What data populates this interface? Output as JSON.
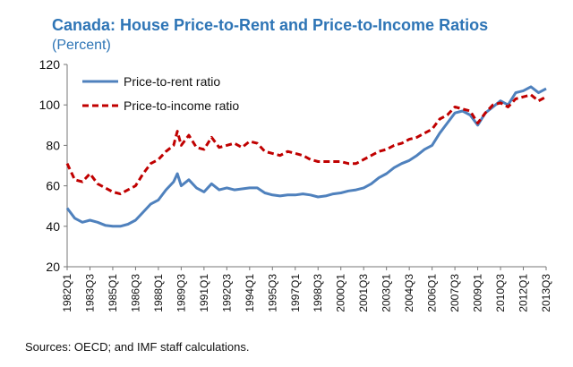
{
  "title": "Canada: House Price-to-Rent and Price-to-Income Ratios",
  "subtitle": "(Percent)",
  "source": "Sources: OECD; and IMF staff calculations.",
  "colors": {
    "title": "#2e75b6",
    "rent": "#4f81bd",
    "income": "#c00000"
  },
  "chart_data": {
    "type": "line",
    "title": "Canada: House Price-to-Rent and Price-to-Income Ratios",
    "subtitle": "(Percent)",
    "ylim": [
      20,
      120
    ],
    "yticks": [
      20,
      40,
      60,
      80,
      100,
      120
    ],
    "grid": false,
    "legend_position": "top-left",
    "x_start": "1982Q1",
    "x_end": "2013Q3",
    "x_tick_labels": [
      "1982Q1",
      "1983Q3",
      "1985Q1",
      "1986Q3",
      "1988Q1",
      "1989Q3",
      "1991Q1",
      "1992Q3",
      "1994Q1",
      "1995Q3",
      "1997Q1",
      "1998Q3",
      "2000Q1",
      "2001Q3",
      "2003Q1",
      "2004Q3",
      "2006Q1",
      "2007Q3",
      "2009Q1",
      "2010Q3",
      "2012Q1",
      "2013Q3"
    ],
    "series": [
      {
        "name": "Price-to-rent ratio",
        "style": "solid",
        "color": "#4f81bd",
        "points": [
          [
            "1982Q1",
            49
          ],
          [
            "1982Q3",
            44
          ],
          [
            "1983Q1",
            42
          ],
          [
            "1983Q3",
            43
          ],
          [
            "1984Q1",
            42
          ],
          [
            "1984Q3",
            40.5
          ],
          [
            "1985Q1",
            40
          ],
          [
            "1985Q3",
            40
          ],
          [
            "1986Q1",
            41
          ],
          [
            "1986Q3",
            43
          ],
          [
            "1987Q1",
            47
          ],
          [
            "1987Q3",
            51
          ],
          [
            "1988Q1",
            53
          ],
          [
            "1988Q3",
            58
          ],
          [
            "1989Q1",
            62
          ],
          [
            "1989Q2",
            66
          ],
          [
            "1989Q3",
            60
          ],
          [
            "1990Q1",
            63
          ],
          [
            "1990Q3",
            59
          ],
          [
            "1991Q1",
            57
          ],
          [
            "1991Q3",
            61
          ],
          [
            "1992Q1",
            58
          ],
          [
            "1992Q3",
            59
          ],
          [
            "1993Q1",
            58
          ],
          [
            "1993Q3",
            58.5
          ],
          [
            "1994Q1",
            59
          ],
          [
            "1994Q3",
            59
          ],
          [
            "1995Q1",
            56.5
          ],
          [
            "1995Q3",
            55.5
          ],
          [
            "1996Q1",
            55
          ],
          [
            "1996Q3",
            55.5
          ],
          [
            "1997Q1",
            55.5
          ],
          [
            "1997Q3",
            56
          ],
          [
            "1998Q1",
            55.5
          ],
          [
            "1998Q3",
            54.5
          ],
          [
            "1999Q1",
            55
          ],
          [
            "1999Q3",
            56
          ],
          [
            "2000Q1",
            56.5
          ],
          [
            "2000Q3",
            57.5
          ],
          [
            "2001Q1",
            58
          ],
          [
            "2001Q3",
            59
          ],
          [
            "2002Q1",
            61
          ],
          [
            "2002Q3",
            64
          ],
          [
            "2003Q1",
            66
          ],
          [
            "2003Q3",
            69
          ],
          [
            "2004Q1",
            71
          ],
          [
            "2004Q3",
            72.5
          ],
          [
            "2005Q1",
            75
          ],
          [
            "2005Q3",
            78
          ],
          [
            "2006Q1",
            80
          ],
          [
            "2006Q3",
            86
          ],
          [
            "2007Q1",
            91
          ],
          [
            "2007Q3",
            96
          ],
          [
            "2008Q1",
            97
          ],
          [
            "2008Q3",
            95
          ],
          [
            "2009Q1",
            90
          ],
          [
            "2009Q3",
            96
          ],
          [
            "2010Q1",
            99
          ],
          [
            "2010Q3",
            102
          ],
          [
            "2011Q1",
            100
          ],
          [
            "2011Q3",
            106
          ],
          [
            "2012Q1",
            107
          ],
          [
            "2012Q3",
            109
          ],
          [
            "2013Q1",
            106
          ],
          [
            "2013Q3",
            108
          ]
        ]
      },
      {
        "name": "Price-to-income ratio",
        "style": "dashed",
        "color": "#c00000",
        "points": [
          [
            "1982Q1",
            71
          ],
          [
            "1982Q3",
            63
          ],
          [
            "1983Q1",
            62
          ],
          [
            "1983Q3",
            66
          ],
          [
            "1984Q1",
            61
          ],
          [
            "1984Q3",
            59
          ],
          [
            "1985Q1",
            57
          ],
          [
            "1985Q3",
            56
          ],
          [
            "1986Q1",
            58
          ],
          [
            "1986Q3",
            60
          ],
          [
            "1987Q1",
            66
          ],
          [
            "1987Q3",
            71
          ],
          [
            "1988Q1",
            73
          ],
          [
            "1988Q3",
            77
          ],
          [
            "1989Q1",
            80
          ],
          [
            "1989Q2",
            87
          ],
          [
            "1989Q3",
            80
          ],
          [
            "1990Q1",
            85
          ],
          [
            "1990Q3",
            79
          ],
          [
            "1991Q1",
            78
          ],
          [
            "1991Q3",
            84
          ],
          [
            "1992Q1",
            79
          ],
          [
            "1992Q3",
            80
          ],
          [
            "1993Q1",
            81
          ],
          [
            "1993Q3",
            79
          ],
          [
            "1994Q1",
            82
          ],
          [
            "1994Q3",
            81
          ],
          [
            "1995Q1",
            77
          ],
          [
            "1995Q3",
            76
          ],
          [
            "1996Q1",
            75
          ],
          [
            "1996Q3",
            77
          ],
          [
            "1997Q1",
            76
          ],
          [
            "1997Q3",
            75
          ],
          [
            "1998Q1",
            73
          ],
          [
            "1998Q3",
            72
          ],
          [
            "1999Q1",
            72
          ],
          [
            "1999Q3",
            72
          ],
          [
            "2000Q1",
            72
          ],
          [
            "2000Q3",
            71
          ],
          [
            "2001Q1",
            71
          ],
          [
            "2001Q3",
            73
          ],
          [
            "2002Q1",
            75
          ],
          [
            "2002Q3",
            77
          ],
          [
            "2003Q1",
            78
          ],
          [
            "2003Q3",
            80
          ],
          [
            "2004Q1",
            81
          ],
          [
            "2004Q3",
            83
          ],
          [
            "2005Q1",
            84
          ],
          [
            "2005Q3",
            86
          ],
          [
            "2006Q1",
            88
          ],
          [
            "2006Q3",
            93
          ],
          [
            "2007Q1",
            95
          ],
          [
            "2007Q3",
            99
          ],
          [
            "2008Q1",
            98
          ],
          [
            "2008Q3",
            97
          ],
          [
            "2009Q1",
            91
          ],
          [
            "2009Q3",
            96
          ],
          [
            "2010Q1",
            100
          ],
          [
            "2010Q3",
            101
          ],
          [
            "2011Q1",
            99
          ],
          [
            "2011Q3",
            103
          ],
          [
            "2012Q1",
            104
          ],
          [
            "2012Q3",
            105
          ],
          [
            "2013Q1",
            102
          ],
          [
            "2013Q3",
            104
          ]
        ]
      }
    ]
  }
}
